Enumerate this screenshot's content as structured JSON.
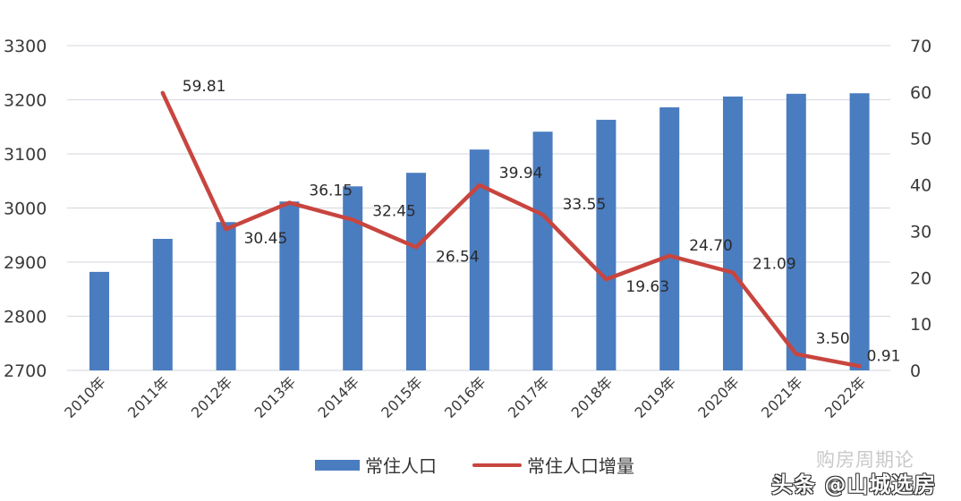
{
  "chart_data": {
    "type": "bar+line",
    "categories": [
      "2010年",
      "2011年",
      "2012年",
      "2013年",
      "2014年",
      "2015年",
      "2016年",
      "2017年",
      "2018年",
      "2019年",
      "2020年",
      "2021年",
      "2022年"
    ],
    "series": [
      {
        "name": "常住人口",
        "type": "bar",
        "axis": "left",
        "color": "#4a7cc0",
        "values": [
          2882,
          2943,
          2974,
          3012,
          3040,
          3065,
          3108,
          3141,
          3163,
          3186,
          3206,
          3211,
          3212
        ]
      },
      {
        "name": "常住人口增量",
        "type": "line",
        "axis": "right",
        "color": "#c8453f",
        "values": [
          null,
          59.81,
          30.45,
          36.15,
          32.45,
          26.54,
          39.94,
          33.55,
          19.63,
          24.7,
          21.09,
          3.5,
          0.91
        ],
        "labels": [
          "",
          "59.81",
          "30.45",
          "36.15",
          "32.45",
          "26.54",
          "39.94",
          "33.55",
          "19.63",
          "24.70",
          "21.09",
          "3.50",
          "0.91"
        ]
      }
    ],
    "y_left": {
      "ticks": [
        "2700",
        "2800",
        "2900",
        "3000",
        "3100",
        "3200",
        "3300"
      ],
      "ylim": [
        2700,
        3300
      ]
    },
    "y_right": {
      "ticks": [
        "0",
        "10",
        "20",
        "30",
        "40",
        "50",
        "60",
        "70"
      ],
      "ylim": [
        0,
        70
      ]
    },
    "title": "",
    "xlabel": "",
    "ylabel": "",
    "grid": true,
    "legend_position": "bottom"
  },
  "legend": {
    "bar_label": "常住人口",
    "line_label": "常住人口增量"
  },
  "watermark": {
    "line1": "购房周期论",
    "line2": "头条 @山城选房"
  }
}
